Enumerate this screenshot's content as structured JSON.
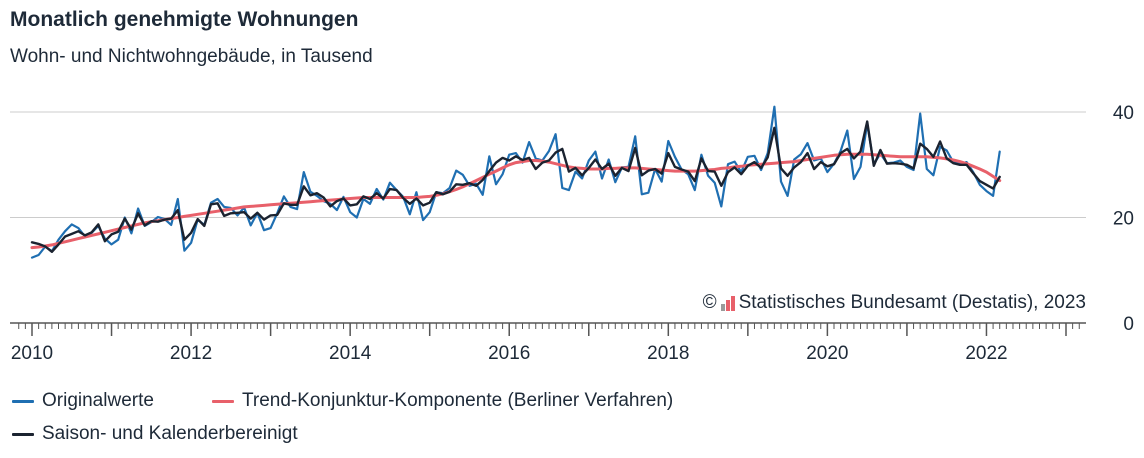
{
  "title": "Monatlich genehmigte Wohnungen",
  "subtitle": "Wohn- und Nichtwohngebäude, in Tausend",
  "copyright": "Statistisches Bundesamt (Destatis), 2023",
  "copyright_symbol": "©",
  "colors": {
    "original": "#1f6fb2",
    "trend": "#e8606a",
    "adjusted": "#1b2330",
    "grid": "#cccccc",
    "axis": "#555555"
  },
  "chart_data": {
    "type": "line",
    "title": "Monatlich genehmigte Wohnungen",
    "subtitle": "Wohn- und Nichtwohngebäude, in Tausend",
    "x_unit": "year (fractional, monthly steps from 2010-01)",
    "xlim": [
      2010,
      2022.917
    ],
    "ylim": [
      0,
      40
    ],
    "x_ticks": [
      2010,
      2012,
      2014,
      2016,
      2018,
      2020,
      2022
    ],
    "x_tick_labels": [
      "2010",
      "2012",
      "2014",
      "2016",
      "2018",
      "2020",
      "2022"
    ],
    "y_ticks": [
      0,
      20,
      40
    ],
    "y_tick_labels": [
      "0",
      "20",
      "40"
    ],
    "y_axis_side": "right",
    "grid": "horizontal",
    "legend_position": "bottom",
    "series": [
      {
        "name": "Originalwerte",
        "color": "#1f6fb2",
        "values": [
          12.4,
          12.9,
          14.5,
          13.6,
          15.8,
          17.4,
          18.7,
          18.0,
          16.4,
          17.1,
          18.4,
          16.0,
          14.9,
          15.8,
          20.0,
          17.0,
          21.7,
          18.4,
          19.1,
          20.1,
          19.7,
          18.6,
          23.5,
          13.7,
          15.2,
          19.6,
          18.6,
          22.8,
          23.5,
          22.0,
          21.8,
          20.4,
          21.9,
          18.5,
          20.9,
          17.6,
          18.0,
          20.8,
          24.0,
          22.0,
          21.6,
          28.6,
          24.9,
          24.1,
          23.1,
          22.6,
          21.4,
          23.9,
          21.0,
          20.0,
          23.5,
          22.6,
          25.4,
          23.4,
          26.6,
          25.2,
          23.9,
          20.6,
          24.8,
          19.5,
          21.0,
          24.8,
          24.6,
          25.6,
          28.9,
          28.1,
          26.0,
          26.4,
          24.3,
          31.6,
          26.3,
          28.2,
          31.9,
          32.2,
          30.4,
          34.3,
          31.2,
          30.8,
          32.6,
          35.8,
          25.6,
          25.2,
          28.7,
          27.4,
          30.8,
          32.5,
          27.4,
          31.0,
          26.7,
          29.5,
          29.6,
          35.4,
          24.4,
          24.7,
          29.2,
          26.8,
          34.5,
          31.5,
          29.1,
          28.2,
          25.2,
          31.9,
          27.9,
          26.6,
          22.1,
          30.1,
          30.6,
          28.6,
          31.5,
          31.7,
          29.0,
          32.2,
          41.0,
          26.8,
          24.1,
          31.0,
          32.0,
          34.1,
          30.8,
          31.2,
          28.6,
          30.2,
          32.6,
          36.5,
          27.3,
          29.6,
          37.8,
          30.1,
          32.1,
          30.3,
          30.4,
          30.8,
          29.6,
          29.0,
          39.7,
          29.2,
          28.0,
          33.4,
          32.7,
          30.5,
          30.1,
          30.5,
          28.6,
          26.2,
          25.0,
          24.1,
          32.5
        ]
      },
      {
        "name": "Trend-Konjunktur-Komponente (Berliner Verfahren)",
        "color": "#e8606a",
        "values": [
          14.3,
          14.4,
          14.6,
          14.8,
          15.1,
          15.4,
          15.7,
          16.0,
          16.3,
          16.6,
          16.9,
          17.2,
          17.5,
          17.8,
          18.1,
          18.4,
          18.7,
          19.0,
          19.2,
          19.4,
          19.6,
          19.8,
          20.0,
          20.2,
          20.4,
          20.6,
          20.8,
          21.0,
          21.2,
          21.4,
          21.6,
          21.8,
          22.0,
          22.1,
          22.2,
          22.3,
          22.4,
          22.5,
          22.6,
          22.7,
          22.8,
          22.9,
          23.0,
          23.1,
          23.2,
          23.3,
          23.4,
          23.5,
          23.6,
          23.7,
          23.8,
          23.8,
          23.8,
          23.8,
          23.8,
          23.8,
          23.8,
          23.8,
          23.8,
          23.9,
          24.0,
          24.2,
          24.5,
          24.9,
          25.3,
          25.8,
          26.4,
          27.0,
          27.6,
          28.2,
          28.8,
          29.4,
          30.0,
          30.4,
          30.6,
          30.8,
          30.8,
          30.7,
          30.5,
          30.2,
          29.9,
          29.6,
          29.4,
          29.3,
          29.2,
          29.2,
          29.2,
          29.3,
          29.3,
          29.4,
          29.4,
          29.4,
          29.3,
          29.2,
          29.1,
          29.0,
          28.9,
          28.8,
          28.8,
          28.8,
          28.8,
          28.9,
          29.0,
          29.1,
          29.3,
          29.4,
          29.6,
          29.7,
          29.9,
          30.0,
          30.1,
          30.2,
          30.3,
          30.4,
          30.5,
          30.6,
          30.8,
          31.0,
          31.2,
          31.4,
          31.6,
          31.8,
          31.9,
          32.0,
          32.0,
          32.0,
          32.0,
          31.9,
          31.8,
          31.7,
          31.6,
          31.5,
          31.5,
          31.5,
          31.5,
          31.5,
          31.4,
          31.3,
          31.1,
          30.9,
          30.6,
          30.2,
          29.7,
          29.2,
          28.6,
          27.8,
          27.0
        ]
      },
      {
        "name": "Saison- und Kalenderbereinigt",
        "color": "#1b2330",
        "values": [
          15.3,
          15.0,
          14.5,
          13.5,
          14.9,
          16.4,
          16.9,
          17.4,
          16.6,
          17.2,
          18.7,
          15.5,
          16.8,
          17.3,
          19.8,
          17.7,
          20.8,
          18.5,
          19.3,
          19.2,
          19.6,
          19.8,
          21.4,
          15.8,
          17.1,
          19.7,
          18.4,
          22.5,
          22.7,
          20.3,
          20.8,
          20.9,
          21.0,
          19.8,
          20.9,
          19.6,
          20.4,
          20.5,
          22.7,
          22.4,
          22.4,
          25.9,
          24.2,
          24.6,
          23.8,
          22.1,
          23.1,
          23.6,
          22.3,
          22.5,
          24.0,
          23.5,
          24.6,
          23.6,
          25.4,
          25.2,
          23.7,
          22.6,
          23.6,
          22.3,
          22.8,
          24.8,
          24.4,
          24.9,
          26.3,
          26.2,
          26.5,
          26.0,
          27.1,
          28.8,
          30.4,
          31.3,
          30.8,
          31.6,
          30.9,
          31.3,
          29.2,
          30.4,
          30.8,
          32.3,
          33.0,
          28.7,
          29.4,
          28.0,
          29.4,
          31.0,
          29.2,
          30.2,
          27.9,
          29.4,
          28.8,
          33.2,
          28.0,
          28.9,
          29.2,
          28.3,
          32.2,
          29.6,
          29.1,
          28.7,
          26.9,
          31.2,
          28.8,
          28.7,
          26.0,
          28.6,
          29.5,
          28.2,
          29.8,
          30.5,
          29.4,
          31.4,
          37.0,
          29.3,
          27.9,
          29.5,
          30.5,
          32.2,
          29.2,
          30.5,
          29.7,
          30.1,
          32.2,
          33.0,
          31.2,
          32.5,
          38.2,
          29.8,
          32.8,
          30.2,
          30.3,
          30.2,
          30.0,
          29.3,
          34.0,
          33.0,
          31.5,
          34.4,
          31.2,
          30.3,
          30.0,
          30.0,
          28.4,
          26.9,
          26.2,
          25.5,
          27.7
        ]
      }
    ]
  },
  "legend": [
    {
      "label": "Originalwerte",
      "color": "#1f6fb2"
    },
    {
      "label": "Trend-Konjunktur-Komponente (Berliner Verfahren)",
      "color": "#e8606a"
    },
    {
      "label": "Saison- und Kalenderbereinigt",
      "color": "#1b2330"
    }
  ]
}
